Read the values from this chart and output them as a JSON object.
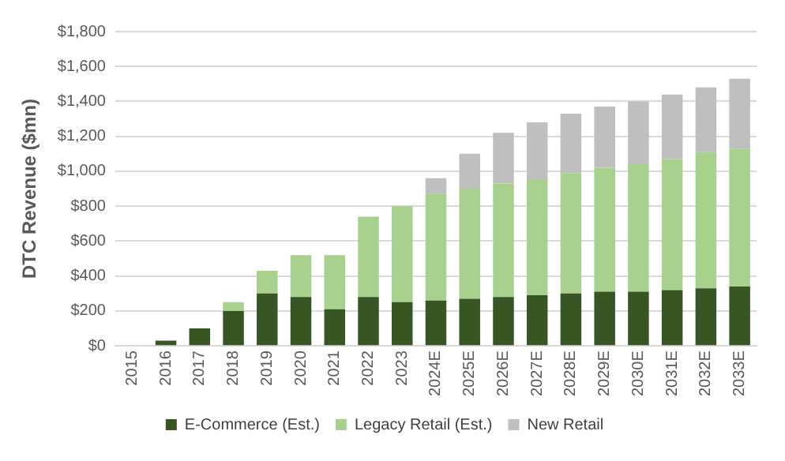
{
  "chart_data": {
    "type": "bar",
    "stacked": true,
    "ylabel": "DTC Revenue ($mn)",
    "categories": [
      "2015",
      "2016",
      "2017",
      "2018",
      "2019",
      "2020",
      "2021",
      "2022",
      "2023",
      "2024E",
      "2025E",
      "2026E",
      "2027E",
      "2028E",
      "2029E",
      "2030E",
      "2031E",
      "2032E",
      "2033E"
    ],
    "series": [
      {
        "name": "E-Commerce (Est.)",
        "color": "#375623",
        "values": [
          0,
          30,
          100,
          200,
          300,
          280,
          210,
          280,
          250,
          260,
          270,
          280,
          290,
          300,
          310,
          310,
          320,
          330,
          340
        ]
      },
      {
        "name": "Legacy Retail (Est.)",
        "color": "#a9d18e",
        "values": [
          0,
          0,
          0,
          50,
          130,
          240,
          310,
          460,
          550,
          610,
          630,
          650,
          660,
          690,
          710,
          730,
          750,
          780,
          790
        ]
      },
      {
        "name": "New Retail",
        "color": "#bfbfbf",
        "values": [
          0,
          0,
          0,
          0,
          0,
          0,
          0,
          0,
          0,
          90,
          200,
          290,
          330,
          340,
          350,
          360,
          370,
          370,
          400
        ]
      }
    ],
    "ylim": [
      0,
      1800
    ],
    "yticks": [
      {
        "value": 0,
        "label": "$0"
      },
      {
        "value": 200,
        "label": "$200"
      },
      {
        "value": 400,
        "label": "$400"
      },
      {
        "value": 600,
        "label": "$600"
      },
      {
        "value": 800,
        "label": "$800"
      },
      {
        "value": 1000,
        "label": "$1,000"
      },
      {
        "value": 1200,
        "label": "$1,200"
      },
      {
        "value": 1400,
        "label": "$1,400"
      },
      {
        "value": 1600,
        "label": "$1,600"
      },
      {
        "value": 1800,
        "label": "$1,800"
      }
    ],
    "grid": "y",
    "legend": "bottom"
  }
}
